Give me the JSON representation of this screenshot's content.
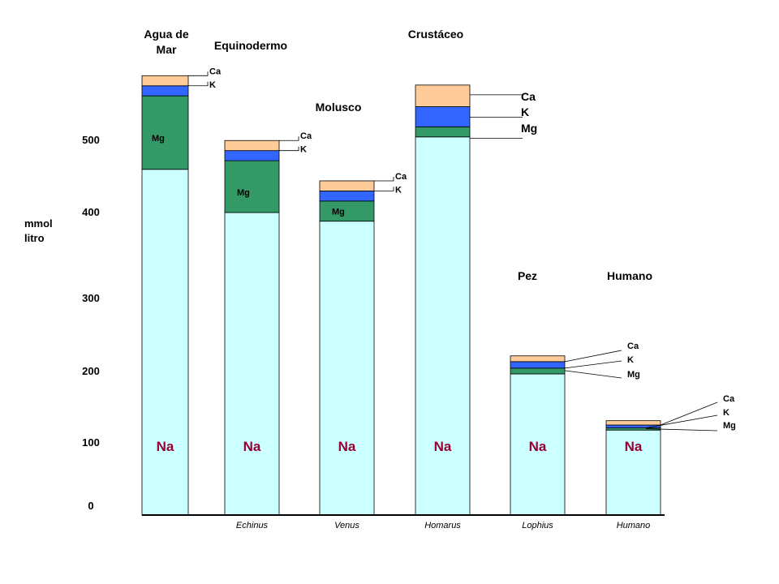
{
  "colors": {
    "Na": "#ccffff",
    "Mg": "#339966",
    "K": "#3366ff",
    "Ca": "#ffcc99",
    "na_label": "#990033",
    "axis": "#000000"
  },
  "axis": {
    "ylabel_line1": "mmol",
    "ylabel_line2": "litro",
    "ticks": [
      "0",
      "100",
      "200",
      "300",
      "400",
      "500"
    ],
    "tick_values": [
      0,
      100,
      200,
      300,
      400,
      500
    ]
  },
  "group_labels": {
    "agua_line1": "Agua de",
    "agua_line2": "Mar",
    "equinodermo": "Equinodermo",
    "molusco": "Molusco",
    "crustaceo": "Crustáceo",
    "pez": "Pez",
    "humano": "Humano"
  },
  "chart_data": {
    "type": "bar",
    "stacked": true,
    "ylim": [
      0,
      610
    ],
    "ylabel": "mmol litro",
    "categories": [
      "",
      "Echinus",
      "Venus",
      "Homarus",
      "Lophius",
      "Humano"
    ],
    "series": [
      {
        "name": "Na",
        "values": [
          480,
          420,
          408,
          525,
          196,
          118
        ]
      },
      {
        "name": "Mg",
        "values": [
          102,
          72,
          28,
          14,
          8,
          3
        ]
      },
      {
        "name": "K",
        "values": [
          14,
          14,
          14,
          28,
          9,
          4
        ]
      },
      {
        "name": "Ca",
        "values": [
          14,
          14,
          14,
          30,
          8,
          6
        ]
      }
    ],
    "bar_labels": {
      "Na": [
        "Na",
        "Na",
        "Na",
        "Na",
        "Na",
        "Na"
      ],
      "Mg": [
        "Mg",
        "Mg",
        "Mg",
        "",
        "",
        ""
      ]
    },
    "callouts": [
      {
        "Ca": "Ca",
        "K": "K",
        "Mg": ""
      },
      {
        "Ca": "Ca",
        "K": "K",
        "Mg": ""
      },
      {
        "Ca": "Ca",
        "K": "K",
        "Mg": ""
      },
      {
        "Ca": "Ca",
        "K": "K",
        "Mg": "Mg"
      },
      {
        "Ca": "Ca",
        "K": "K",
        "Mg": "Mg"
      },
      {
        "Ca": "Ca",
        "K": "K",
        "Mg": "Mg"
      }
    ]
  }
}
